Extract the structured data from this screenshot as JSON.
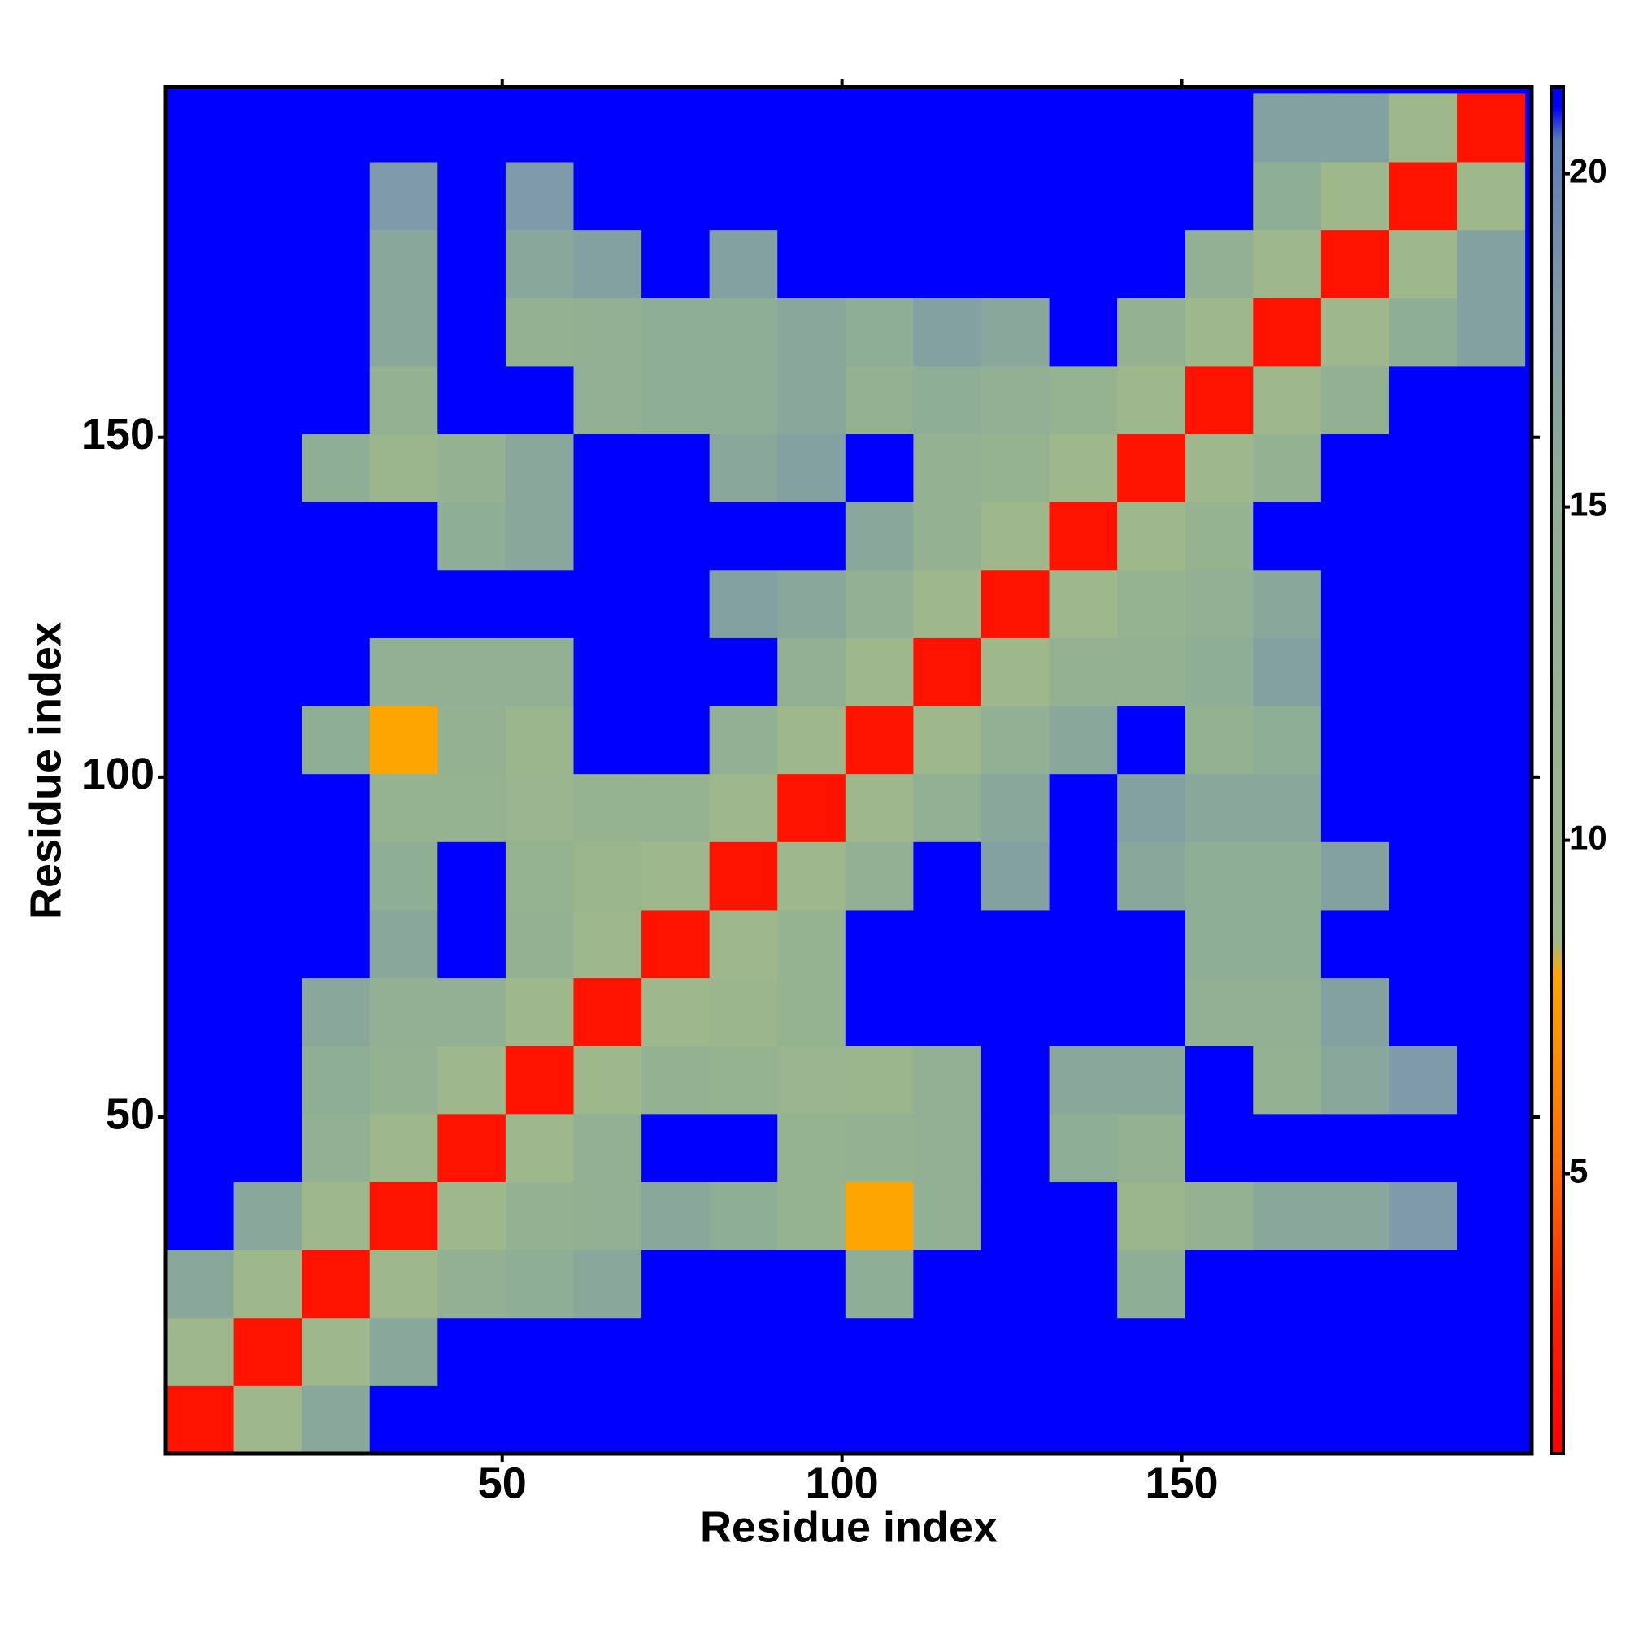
{
  "chart_data": {
    "type": "heatmap",
    "xlabel": "Residue index",
    "ylabel": "Residue index",
    "x": [
      5.5,
      15.5,
      25.5,
      35.5,
      45.5,
      55.5,
      65.5,
      75.5,
      85.5,
      95.5,
      105.5,
      115.5,
      125.5,
      135.5,
      145.5,
      155.5,
      165.5,
      175.5,
      185.5,
      195.5
    ],
    "y": [
      5.5,
      15.5,
      25.5,
      35.5,
      45.5,
      55.5,
      65.5,
      75.5,
      85.5,
      95.5,
      105.5,
      115.5,
      125.5,
      135.5,
      145.5,
      155.5,
      165.5,
      175.5,
      185.5,
      195.5
    ],
    "z": [
      [
        2,
        9,
        16,
        21,
        21,
        21,
        21,
        21,
        21,
        21,
        21,
        21,
        21,
        21,
        21,
        21,
        21,
        21,
        21,
        21
      ],
      [
        9,
        2,
        9,
        16,
        21,
        21,
        21,
        21,
        21,
        21,
        21,
        21,
        21,
        21,
        21,
        21,
        21,
        21,
        21,
        21
      ],
      [
        16,
        9,
        2,
        9,
        14,
        15,
        16,
        21,
        21,
        21,
        15,
        21,
        21,
        21,
        15,
        21,
        21,
        21,
        21,
        21
      ],
      [
        21,
        16,
        9,
        2,
        9,
        13,
        14,
        16,
        15,
        12,
        8,
        14,
        21,
        21,
        10,
        13,
        16,
        16,
        18,
        21
      ],
      [
        21,
        21,
        14,
        9,
        2,
        9,
        14,
        21,
        21,
        12,
        13,
        14,
        21,
        15,
        13,
        21,
        21,
        21,
        21,
        21
      ],
      [
        21,
        21,
        15,
        13,
        9,
        2,
        9,
        13,
        12,
        11,
        10,
        14,
        21,
        16,
        16,
        21,
        13,
        16,
        18,
        21
      ],
      [
        21,
        21,
        16,
        14,
        14,
        9,
        2,
        9,
        10,
        12,
        21,
        21,
        21,
        21,
        21,
        14,
        14,
        17,
        21,
        21
      ],
      [
        21,
        21,
        21,
        16,
        21,
        13,
        9,
        2,
        9,
        12,
        21,
        21,
        21,
        21,
        21,
        15,
        15,
        21,
        21,
        21
      ],
      [
        21,
        21,
        21,
        15,
        21,
        12,
        10,
        9,
        2,
        9,
        14,
        21,
        17,
        21,
        16,
        15,
        15,
        17,
        21,
        21
      ],
      [
        21,
        21,
        21,
        12,
        12,
        11,
        12,
        12,
        9,
        2,
        9,
        14,
        16,
        21,
        17,
        16,
        16,
        21,
        21,
        21
      ],
      [
        21,
        21,
        15,
        8,
        13,
        10,
        21,
        21,
        14,
        9,
        2,
        9,
        14,
        16,
        21,
        13,
        15,
        21,
        21,
        21
      ],
      [
        21,
        21,
        21,
        14,
        14,
        14,
        21,
        21,
        21,
        14,
        9,
        2,
        9,
        13,
        13,
        15,
        17,
        21,
        21,
        21
      ],
      [
        21,
        21,
        21,
        21,
        21,
        21,
        21,
        21,
        17,
        16,
        14,
        9,
        2,
        9,
        12,
        14,
        16,
        21,
        21,
        21
      ],
      [
        21,
        21,
        21,
        21,
        15,
        16,
        21,
        21,
        21,
        21,
        16,
        13,
        9,
        2,
        9,
        12,
        21,
        21,
        21,
        21
      ],
      [
        21,
        21,
        15,
        10,
        13,
        16,
        21,
        21,
        16,
        17,
        21,
        13,
        12,
        9,
        2,
        9,
        13,
        21,
        21,
        21
      ],
      [
        21,
        21,
        21,
        13,
        21,
        21,
        14,
        15,
        15,
        16,
        13,
        15,
        14,
        12,
        9,
        2,
        9,
        14,
        21,
        21
      ],
      [
        21,
        21,
        21,
        16,
        21,
        13,
        14,
        15,
        15,
        16,
        15,
        17,
        16,
        21,
        13,
        9,
        2,
        9,
        15,
        17
      ],
      [
        21,
        21,
        21,
        16,
        21,
        16,
        17,
        21,
        17,
        21,
        21,
        21,
        21,
        21,
        21,
        14,
        9,
        2,
        9,
        17
      ],
      [
        21,
        21,
        21,
        18,
        21,
        18,
        21,
        21,
        21,
        21,
        21,
        21,
        21,
        21,
        21,
        21,
        15,
        9,
        2,
        9
      ],
      [
        21,
        21,
        21,
        21,
        21,
        21,
        21,
        21,
        21,
        21,
        21,
        21,
        21,
        21,
        21,
        21,
        17,
        17,
        9,
        2
      ]
    ],
    "xlim": [
      0.5,
      201.5
    ],
    "ylim": [
      0.5,
      201.5
    ],
    "xticks": [
      50,
      100,
      150
    ],
    "yticks": [
      50,
      100,
      150
    ],
    "zlim": [
      0.8,
      21.3
    ],
    "zticks": [
      5,
      10,
      15,
      20
    ],
    "colorscale": [
      [
        0.8,
        "#ff0000"
      ],
      [
        3,
        "#ff2200"
      ],
      [
        5,
        "#ff6a00"
      ],
      [
        8,
        "#ffa500"
      ],
      [
        8.5,
        "#9fb88a"
      ],
      [
        15,
        "#8fae96"
      ],
      [
        18,
        "#7f9aa8"
      ],
      [
        20.5,
        "#5b7db8"
      ],
      [
        21,
        "#0000ff"
      ],
      [
        21.3,
        "#0000ff"
      ]
    ]
  }
}
